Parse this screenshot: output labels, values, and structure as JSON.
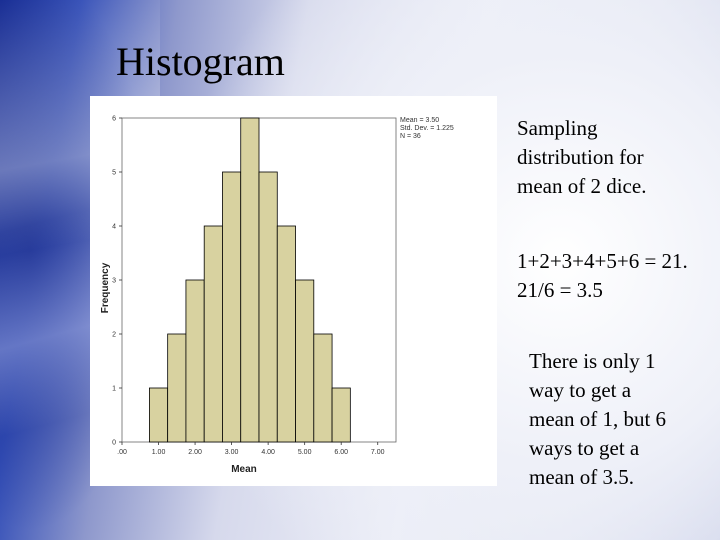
{
  "slide": {
    "title": "Histogram",
    "caption1": [
      "Sampling",
      "distribution for",
      "mean of 2 dice."
    ],
    "caption2": [
      "1+2+3+4+5+6 = 21.",
      "21/6 = 3.5"
    ],
    "caption3": [
      "There is only 1",
      "way to get a",
      "mean of 1, but 6",
      "ways to get a",
      "mean of 3.5."
    ]
  },
  "chart_data": {
    "type": "bar",
    "xlabel": "Mean",
    "ylabel": "Frequency",
    "x_ticks": [
      ".00",
      "1.00",
      "2.00",
      "3.00",
      "4.00",
      "5.00",
      "6.00",
      "7.00"
    ],
    "x_range": [
      0,
      7.5
    ],
    "y_ticks": [
      "0",
      "1",
      "2",
      "3",
      "4",
      "5",
      "6"
    ],
    "ylim": [
      0,
      6
    ],
    "bin_width": 0.5,
    "bins": [
      {
        "start": 0.75,
        "count": 1
      },
      {
        "start": 1.25,
        "count": 2
      },
      {
        "start": 1.75,
        "count": 3
      },
      {
        "start": 2.25,
        "count": 4
      },
      {
        "start": 2.75,
        "count": 5
      },
      {
        "start": 3.25,
        "count": 6
      },
      {
        "start": 3.75,
        "count": 5
      },
      {
        "start": 4.25,
        "count": 4
      },
      {
        "start": 4.75,
        "count": 3
      },
      {
        "start": 5.25,
        "count": 2
      },
      {
        "start": 5.75,
        "count": 1
      }
    ],
    "stats": [
      "Mean = 3.50",
      "Std. Dev. = 1.225",
      "N = 36"
    ],
    "bar_color": "#d8d2a0",
    "bar_stroke": "#000000"
  }
}
